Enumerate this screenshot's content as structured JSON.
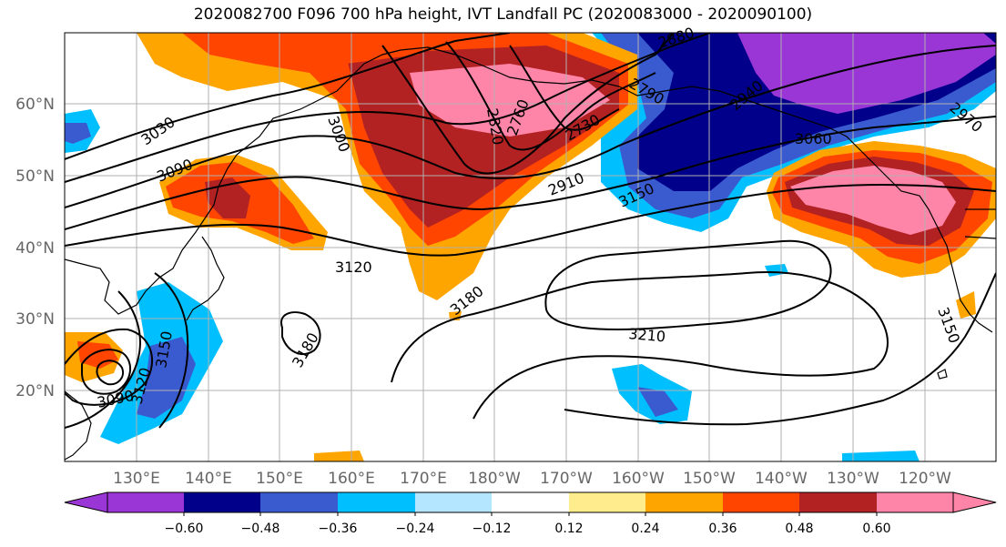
{
  "title": "2020082700 F096 700 hPa height, IVT Landfall PC (2020083000 - 2020090100)",
  "lat_labels": [
    "60°N",
    "50°N",
    "40°N",
    "30°N",
    "20°N"
  ],
  "lon_labels": [
    "130°E",
    "140°E",
    "150°E",
    "160°E",
    "170°E",
    "180°W",
    "170°W",
    "160°W",
    "150°W",
    "140°W",
    "130°W",
    "120°W"
  ],
  "contour_labels": [
    "2880",
    "2790",
    "2760",
    "2820",
    "2730",
    "3000",
    "3030",
    "3090",
    "2940",
    "2910",
    "3060",
    "2970",
    "3150",
    "3120",
    "3180",
    "3210",
    "3180",
    "3150",
    "3120",
    "3090",
    "3150"
  ],
  "colorbar": {
    "ticks": [
      "−0.60",
      "−0.48",
      "−0.36",
      "−0.24",
      "−0.12",
      "0.12",
      "0.24",
      "0.36",
      "0.48",
      "0.60"
    ],
    "colors": [
      "#9a35d6",
      "#00008a",
      "#3a5bd0",
      "#00bfff",
      "#b4e6ff",
      "#ffffff",
      "#ffec8c",
      "#ffa500",
      "#ff4500",
      "#b22222",
      "#ff85a8",
      "#ff85a8"
    ]
  }
}
